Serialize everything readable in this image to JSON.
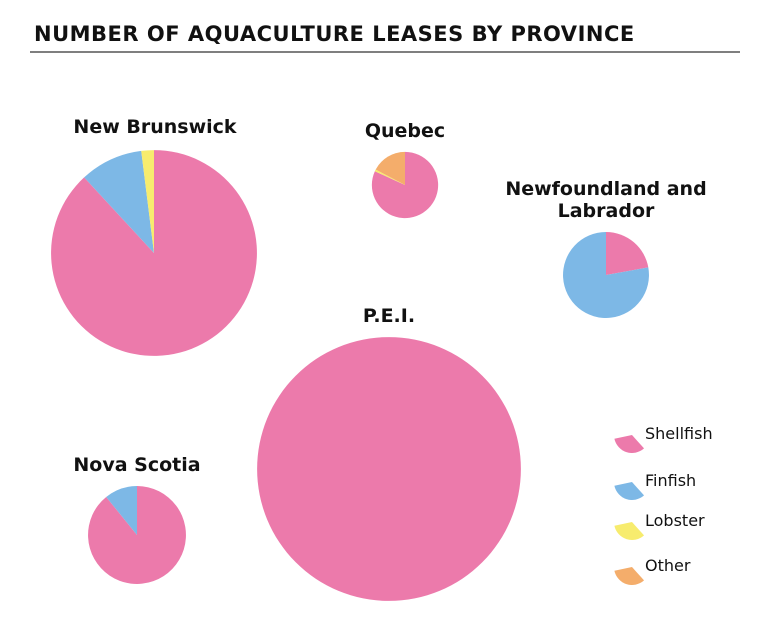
{
  "title": "NUMBER OF AQUACULTURE LEASES BY PROVINCE",
  "legend": {
    "categories": [
      "Shellfish",
      "Finfish",
      "Lobster",
      "Other"
    ],
    "colors": [
      "#ec7aab",
      "#7db8e6",
      "#f7ec6e",
      "#f4ad6b"
    ],
    "position": "right"
  },
  "chart_data": [
    {
      "type": "pie",
      "title": "New Brunswick",
      "values": [
        935,
        105,
        21,
        0
      ]
    },
    {
      "type": "pie",
      "title": "Quebec",
      "values": [
        90,
        0,
        1,
        19
      ]
    },
    {
      "type": "pie",
      "title": "Newfoundland and Labrador",
      "values": [
        41,
        144,
        0,
        0
      ]
    },
    {
      "type": "pie",
      "title": "P.E.I.",
      "values": [
        1742,
        0,
        0,
        0
      ]
    },
    {
      "type": "pie",
      "title": "Nova Scotia",
      "values": [
        214,
        26,
        0,
        0
      ]
    }
  ]
}
